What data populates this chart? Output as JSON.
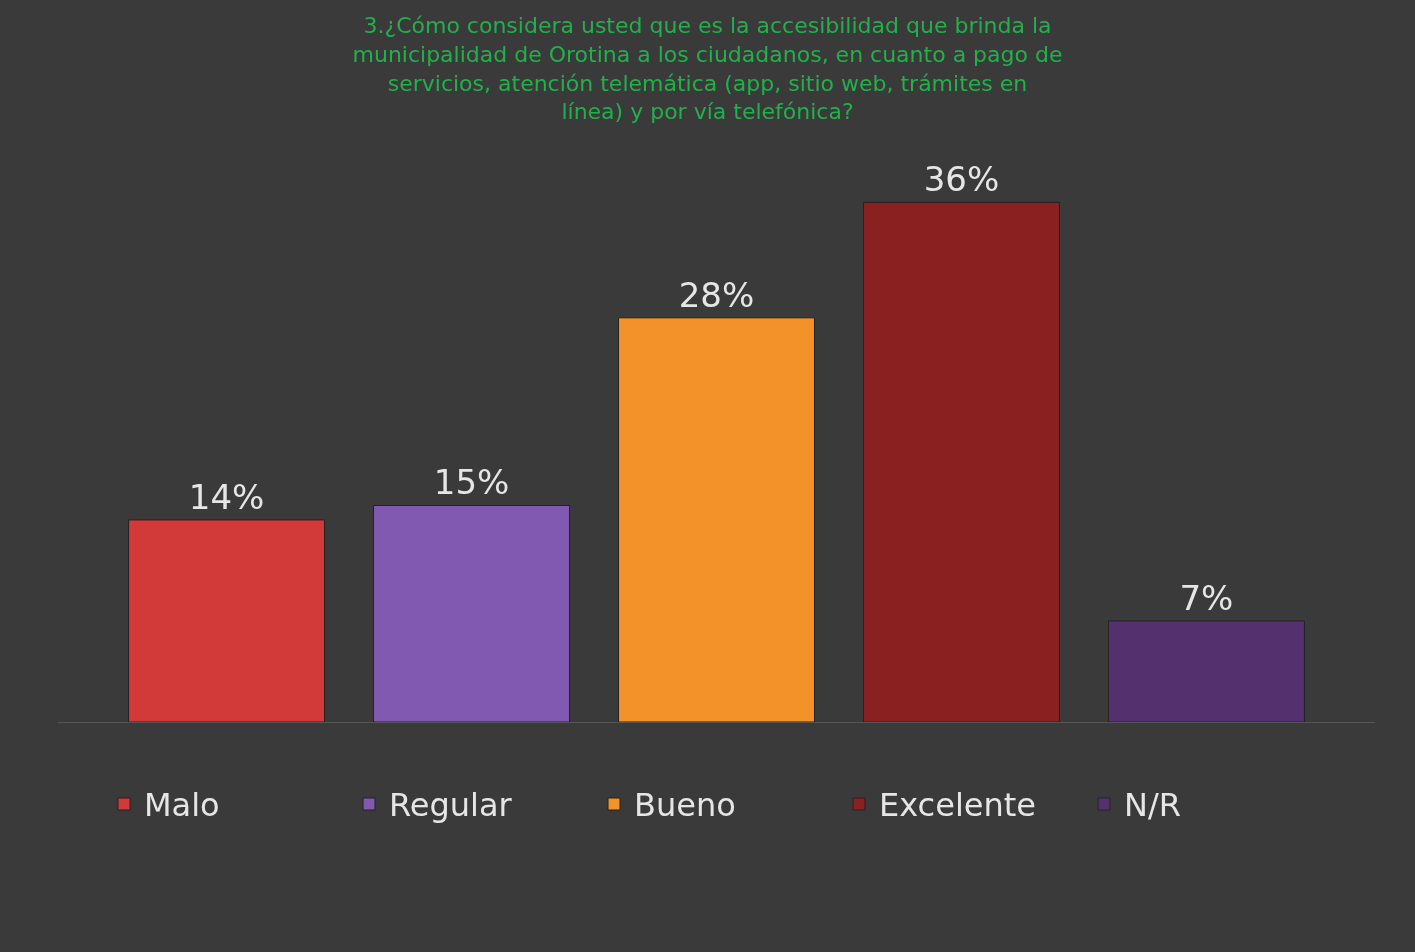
{
  "chart_data": {
    "type": "bar",
    "title": "3.¿Cómo considera usted que es la accesibilidad que brinda la municipalidad de Orotina a los ciudadanos, en cuanto a pago de servicios, atención telemática (app, sitio web, trámites en línea) y por vía telefónica?",
    "categories": [
      null
    ],
    "series": [
      {
        "name": "Malo",
        "color": "#d23a3a",
        "values": [
          14
        ],
        "value_labels": [
          "14%"
        ]
      },
      {
        "name": "Regular",
        "color": "#8259b0",
        "values": [
          15
        ],
        "value_labels": [
          "15%"
        ]
      },
      {
        "name": "Bueno",
        "color": "#f39229",
        "values": [
          28
        ],
        "value_labels": [
          "28%"
        ]
      },
      {
        "name": "Excelente",
        "color": "#8a2020",
        "values": [
          36
        ],
        "value_labels": [
          "36%"
        ]
      },
      {
        "name": "N/R",
        "color": "#55306e",
        "values": [
          7
        ],
        "value_labels": [
          "7%"
        ]
      }
    ],
    "tick_labels": false,
    "legend": "bottom"
  }
}
